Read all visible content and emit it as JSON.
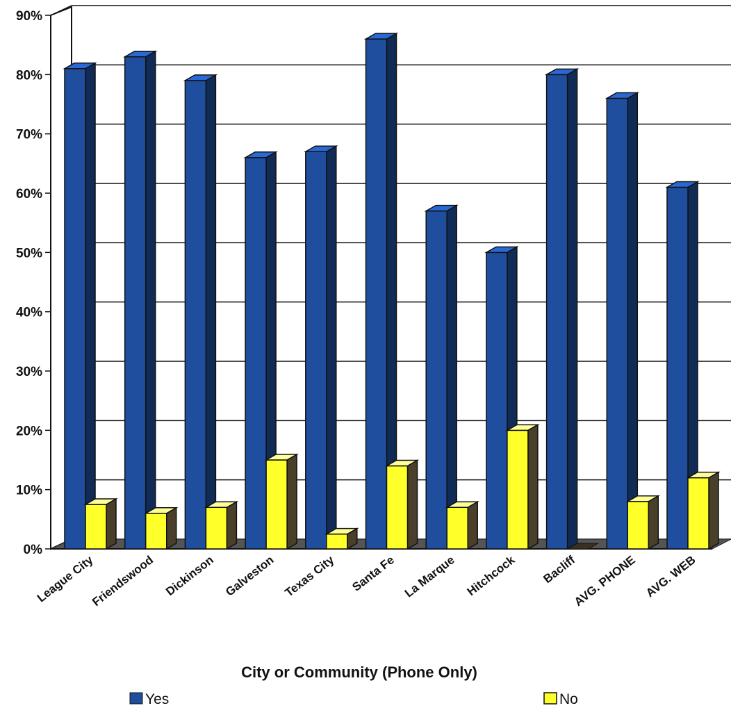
{
  "chart_data": {
    "type": "bar",
    "categories": [
      "League City",
      "Friendswood",
      "Dickinson",
      "Galveston",
      "Texas City",
      "Santa Fe",
      "La Marque",
      "Hitchcock",
      "Bacliff",
      "AVG. PHONE",
      "AVG. WEB"
    ],
    "series": [
      {
        "name": "Yes",
        "values": [
          81,
          83,
          79,
          66,
          67,
          86,
          57,
          50,
          80,
          76,
          61
        ],
        "color": "#1f4e9e"
      },
      {
        "name": "No",
        "values": [
          7.5,
          6,
          7,
          15,
          2.5,
          14,
          7,
          20,
          0,
          8,
          12
        ],
        "color": "#ffff2a"
      }
    ],
    "yticks": [
      "0%",
      "10%",
      "20%",
      "30%",
      "40%",
      "50%",
      "60%",
      "70%",
      "80%",
      "90%"
    ],
    "ylim": [
      0,
      90
    ],
    "xlabel": "City or Community (Phone Only)",
    "ylabel": "",
    "grid": true,
    "legend": "bottom"
  }
}
